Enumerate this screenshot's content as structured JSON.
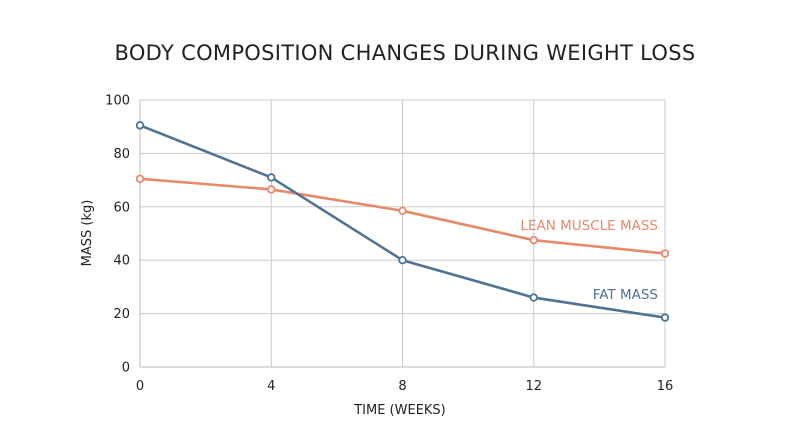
{
  "chart_data": {
    "type": "line",
    "title": "BODY COMPOSITION CHANGES DURING WEIGHT LOSS",
    "xlabel": "TIME (WEEKS)",
    "ylabel": "MASS (kg)",
    "x": [
      0,
      4,
      8,
      12,
      16
    ],
    "xlim": [
      0,
      16
    ],
    "ylim": [
      0,
      100
    ],
    "xticks": [
      "0",
      "4",
      "8",
      "12",
      "16"
    ],
    "yticks": [
      "0",
      "20",
      "40",
      "60",
      "80",
      "100"
    ],
    "grid": true,
    "series": [
      {
        "name": "LEAN MUSCLE MASS",
        "color": "#e8896a",
        "values": [
          70.5,
          66.5,
          58.5,
          47.5,
          42.5
        ]
      },
      {
        "name": "FAT MASS",
        "color": "#4f7394",
        "values": [
          90.5,
          71,
          40,
          26,
          18.5
        ]
      }
    ]
  }
}
